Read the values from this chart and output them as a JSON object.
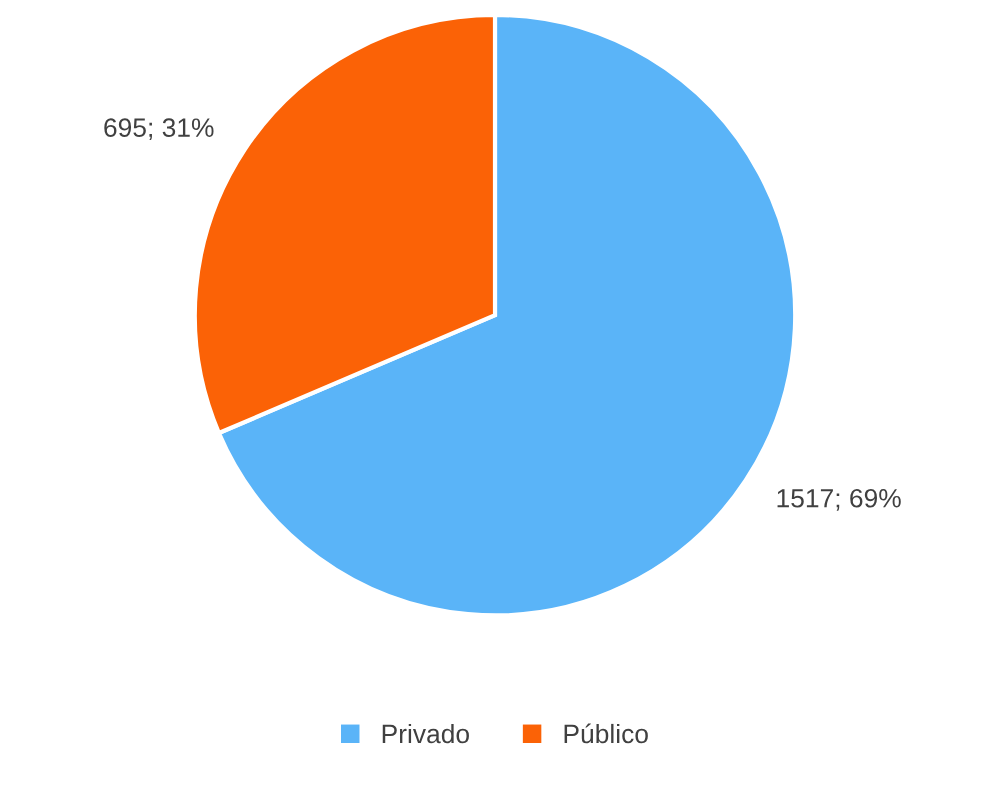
{
  "chart_data": {
    "type": "pie",
    "categories": [
      "Privado",
      "Público"
    ],
    "values": [
      1517,
      695
    ],
    "colors": [
      "#5ab4f8",
      "#fb6206"
    ],
    "value_labels": [
      "1517; 69%",
      "695; 31%"
    ],
    "legend": "bottom"
  }
}
